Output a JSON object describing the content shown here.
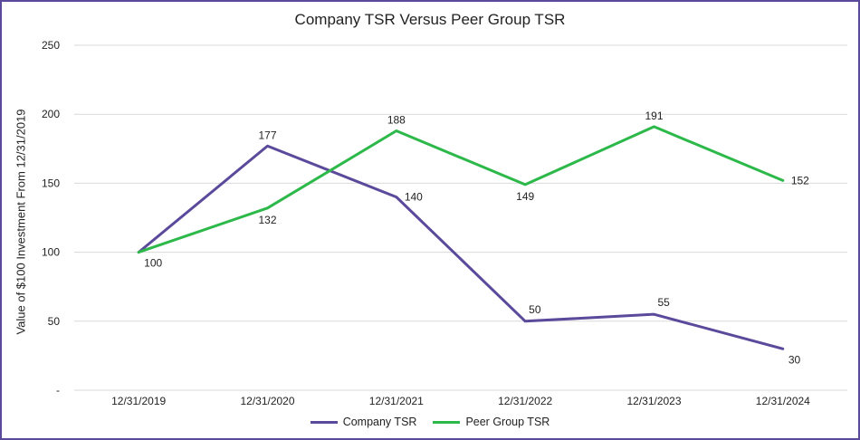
{
  "chart_data": {
    "type": "line",
    "title": "Company TSR Versus Peer Group TSR",
    "xlabel": "",
    "ylabel": "Value of $100 Investment From 12/31/2019",
    "categories": [
      "12/31/2019",
      "12/31/2020",
      "12/31/2021",
      "12/31/2022",
      "12/31/2023",
      "12/31/2024"
    ],
    "ylim": [
      0,
      250
    ],
    "yticks": [
      {
        "value": 0,
        "label": "-"
      },
      {
        "value": 50,
        "label": "50"
      },
      {
        "value": 100,
        "label": "100"
      },
      {
        "value": 150,
        "label": "150"
      },
      {
        "value": 200,
        "label": "200"
      },
      {
        "value": 250,
        "label": "250"
      }
    ],
    "grid": true,
    "legend_position": "bottom",
    "series": [
      {
        "name": "Company TSR",
        "color": "#5b4a9b",
        "values": [
          100,
          177,
          140,
          50,
          55,
          30
        ],
        "labels": [
          "100",
          "177",
          "140",
          "50",
          "55",
          "30"
        ],
        "label_positions": [
          "below-right",
          "above",
          "right",
          "above-right",
          "above-right",
          "below-right"
        ]
      },
      {
        "name": "Peer Group TSR",
        "color": "#2db84a",
        "values": [
          100,
          132,
          188,
          149,
          191,
          152
        ],
        "labels": [
          "",
          "132",
          "188",
          "149",
          "191",
          "152"
        ],
        "label_positions": [
          "none",
          "below",
          "above",
          "below",
          "above",
          "right"
        ]
      }
    ]
  }
}
